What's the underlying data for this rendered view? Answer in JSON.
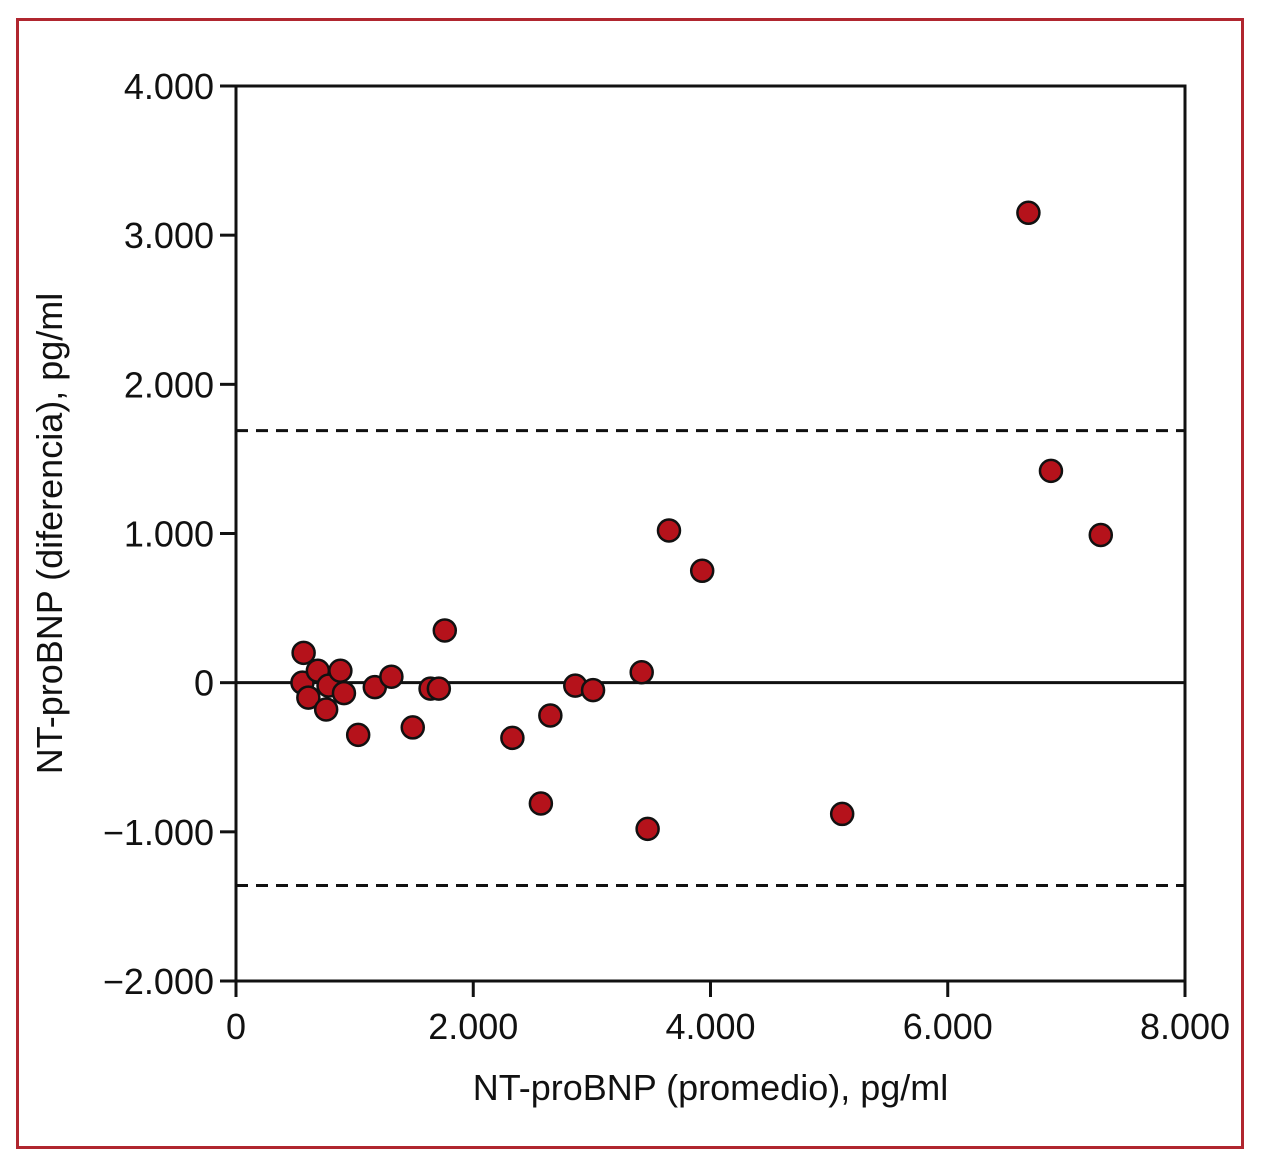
{
  "chart_data": {
    "type": "scatter",
    "title": "",
    "xlabel": "NT-proBNP (promedio), pg/ml",
    "ylabel": "NT-proBNP (diferencia), pg/ml",
    "xlim": [
      0,
      8000
    ],
    "ylim": [
      -2000,
      4000
    ],
    "x_ticks": [
      0,
      2000,
      4000,
      6000,
      8000
    ],
    "x_tick_labels": [
      "0",
      "2.000",
      "4.000",
      "6.000",
      "8.000"
    ],
    "y_ticks": [
      4000,
      3000,
      2000,
      1000,
      0,
      -1000,
      -2000
    ],
    "y_tick_labels": [
      "4.000",
      "3.000",
      "2.000",
      "1.000",
      "0",
      "−1.000",
      "−2.000"
    ],
    "grid": false,
    "reference_lines": [
      {
        "y": 0,
        "style": "solid"
      },
      {
        "y": 1690,
        "style": "dashed"
      },
      {
        "y": -1360,
        "style": "dashed"
      }
    ],
    "marker_color": "#b5121b",
    "frame_color": "#b0262f",
    "points": [
      {
        "x": 570,
        "y": 200
      },
      {
        "x": 560,
        "y": 0
      },
      {
        "x": 610,
        "y": -100
      },
      {
        "x": 690,
        "y": 80
      },
      {
        "x": 760,
        "y": -180
      },
      {
        "x": 780,
        "y": -20
      },
      {
        "x": 880,
        "y": 80
      },
      {
        "x": 910,
        "y": -70
      },
      {
        "x": 1030,
        "y": -350
      },
      {
        "x": 1170,
        "y": -30
      },
      {
        "x": 1310,
        "y": 40
      },
      {
        "x": 1490,
        "y": -300
      },
      {
        "x": 1640,
        "y": -40
      },
      {
        "x": 1710,
        "y": -40
      },
      {
        "x": 1760,
        "y": 350
      },
      {
        "x": 2330,
        "y": -370
      },
      {
        "x": 2570,
        "y": -810
      },
      {
        "x": 2650,
        "y": -220
      },
      {
        "x": 2860,
        "y": -20
      },
      {
        "x": 3010,
        "y": -50
      },
      {
        "x": 3420,
        "y": 70
      },
      {
        "x": 3470,
        "y": -980
      },
      {
        "x": 3650,
        "y": 1020
      },
      {
        "x": 3930,
        "y": 750
      },
      {
        "x": 5110,
        "y": -880
      },
      {
        "x": 6680,
        "y": 3150
      },
      {
        "x": 6870,
        "y": 1420
      },
      {
        "x": 7290,
        "y": 990
      }
    ]
  }
}
